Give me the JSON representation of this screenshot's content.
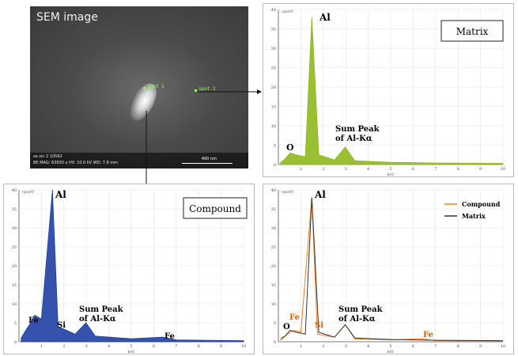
{
  "sem": {
    "title": "SEM image",
    "spot_left": "spot 1",
    "spot_right": "spot 2",
    "footer_line1": "sa sin 2 10562",
    "footer_line2": "BE MAG: 63930 x  HV: 10.0 kV  WD: 7.8 mm",
    "scale_label": "400 nm"
  },
  "matrix_panel": {
    "box_label": "Matrix",
    "peak_al": "Al",
    "peak_o": "O",
    "sum_line1": "Sum Peak",
    "sum_line2": "of Al-Kα",
    "axis_unit": "cps/eV",
    "x_unit": "keV"
  },
  "compound_panel": {
    "box_label": "Compound",
    "peak_al": "Al",
    "peak_fe_left": "Fe",
    "peak_si": "Si",
    "peak_fe_right": "Fe",
    "sum_line1": "Sum Peak",
    "sum_line2": "of Al-Kα",
    "axis_unit": "cps/eV",
    "x_unit": "keV"
  },
  "overlay_panel": {
    "legend_compound": "Compound",
    "legend_matrix": "Matrix",
    "peak_al": "Al",
    "peak_o": "O",
    "peak_fe_left": "Fe",
    "peak_si": "Si",
    "peak_fe_right": "Fe",
    "sum_line1": "Sum Peak",
    "sum_line2": "of Al-Kα",
    "axis_unit": "cps/eV",
    "x_unit": "keV"
  },
  "axes": {
    "y_ticks": [
      "0",
      "5",
      "10",
      "15",
      "20",
      "25",
      "30",
      "35",
      "40"
    ],
    "x_ticks": [
      "1",
      "2",
      "3",
      "4",
      "5",
      "6",
      "7",
      "8",
      "9",
      "10"
    ]
  },
  "colors": {
    "matrix": "#8fb81c",
    "compound": "#1f3fa3",
    "overlay_compound": "#ff7a1a",
    "overlay_matrix": "#333333",
    "label_orange": "#e65c00"
  },
  "chart_data": [
    {
      "type": "line",
      "panel": "matrix",
      "xlim": [
        0,
        10
      ],
      "ylim": [
        0,
        40
      ],
      "series": [
        {
          "name": "Matrix",
          "x": [
            0.1,
            0.3,
            0.52,
            0.8,
            1.2,
            1.49,
            1.8,
            2.5,
            2.98,
            3.4,
            5,
            7,
            10
          ],
          "y": [
            0.5,
            1.5,
            3,
            2.5,
            2,
            38,
            2.5,
            1.2,
            4.5,
            1,
            0.6,
            0.4,
            0.3
          ]
        }
      ]
    },
    {
      "type": "line",
      "panel": "compound",
      "xlim": [
        0,
        10
      ],
      "ylim": [
        0,
        40
      ],
      "series": [
        {
          "name": "Compound",
          "x": [
            0.1,
            0.3,
            0.52,
            0.7,
            1.0,
            1.49,
            1.74,
            2.5,
            2.98,
            3.4,
            5,
            6.4,
            7,
            10
          ],
          "y": [
            1,
            3,
            5,
            7,
            6,
            40,
            4,
            2,
            5,
            1.5,
            0.8,
            1.2,
            0.5,
            0.3
          ]
        }
      ]
    },
    {
      "type": "line",
      "panel": "overlay",
      "xlim": [
        0,
        10
      ],
      "ylim": [
        0,
        40
      ],
      "series": [
        {
          "name": "Compound",
          "x": [
            0.1,
            0.3,
            0.52,
            0.7,
            1.0,
            1.49,
            1.74,
            2.5,
            2.98,
            3.4,
            5,
            6.4,
            7,
            10
          ],
          "y": [
            1,
            1.5,
            2.5,
            3,
            2.5,
            38,
            2,
            1.2,
            4.5,
            0.8,
            0.5,
            0.8,
            0.3,
            0.2
          ]
        },
        {
          "name": "Matrix",
          "x": [
            0.1,
            0.3,
            0.52,
            0.8,
            1.2,
            1.49,
            1.8,
            2.5,
            2.98,
            3.4,
            5,
            7,
            10
          ],
          "y": [
            0.5,
            1.5,
            3,
            2.5,
            2,
            38,
            2.5,
            1.2,
            4.5,
            1,
            0.6,
            0.4,
            0.3
          ]
        }
      ]
    }
  ]
}
